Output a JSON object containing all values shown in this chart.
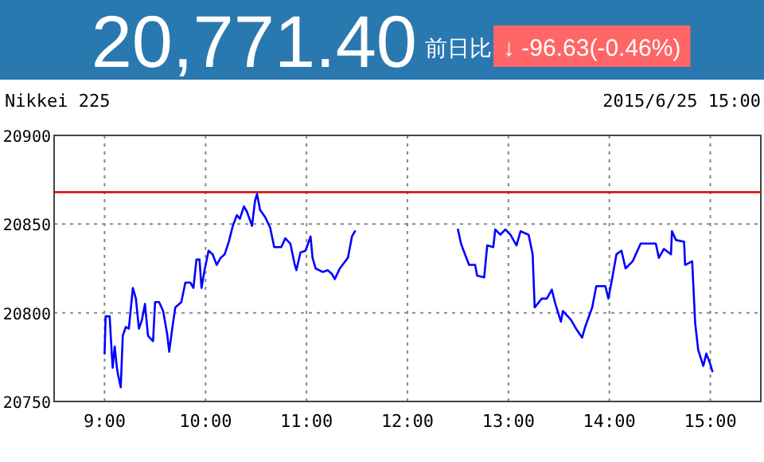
{
  "chart_data": {
    "type": "line",
    "title": "20,771.40",
    "subtitle": "Nikkei 225",
    "annotations": [
      "前日比",
      "↓ -96.63(-0.46%)",
      "2015/6/25 15:00"
    ],
    "xlim": [
      8.5,
      15.5
    ],
    "xticks": [
      {
        "value": 9,
        "label": "9:00"
      },
      {
        "value": 10,
        "label": "10:00"
      },
      {
        "value": 11,
        "label": "11:00"
      },
      {
        "value": 12,
        "label": "12:00"
      },
      {
        "value": 13,
        "label": "13:00"
      },
      {
        "value": 14,
        "label": "14:00"
      },
      {
        "value": 15,
        "label": "15:00"
      }
    ],
    "ylim": [
      20750,
      20900
    ],
    "yticks": [
      20750,
      20800,
      20850,
      20900
    ],
    "grid": true,
    "ref_lines": [
      {
        "axis": "y",
        "value": 20868.03,
        "color": "#e00000"
      }
    ],
    "series": [
      {
        "color": "#0000ff",
        "x": [
          9.0,
          9.01,
          9.05,
          9.07,
          9.08,
          9.1,
          9.12,
          9.13,
          9.16,
          9.18,
          9.21,
          9.24,
          9.28,
          9.31,
          9.34,
          9.37,
          9.4,
          9.43,
          9.48,
          9.5,
          9.54,
          9.58,
          9.62,
          9.64,
          9.67,
          9.7,
          9.76,
          9.8,
          9.85,
          9.88,
          9.91,
          9.94,
          9.96,
          9.99,
          10.03,
          10.07,
          10.11,
          10.15,
          10.19,
          10.23,
          10.27,
          10.31,
          10.34,
          10.38,
          10.41,
          10.46,
          10.49,
          10.51,
          10.54,
          10.59,
          10.64,
          10.68,
          10.75,
          10.79,
          10.84,
          10.88,
          10.9,
          10.94,
          10.99,
          11.04,
          11.06,
          11.09,
          11.16,
          11.21,
          11.25,
          11.28,
          11.33,
          11.37,
          11.41,
          11.45,
          11.48
        ],
        "values": [
          20777,
          20798,
          20798,
          20778,
          20769,
          20781,
          20770,
          20766,
          20758,
          20787,
          20792,
          20791,
          20814,
          20808,
          20791,
          20796,
          20805,
          20787,
          20784,
          20806,
          20806,
          20801,
          20788,
          20778,
          20791,
          20803,
          20806,
          20817,
          20817,
          20814,
          20830,
          20830,
          20814,
          20824,
          20835,
          20833,
          20827,
          20831,
          20833,
          20840,
          20849,
          20855,
          20853,
          20860,
          20857,
          20849,
          20863,
          20867,
          20858,
          20854,
          20848,
          20837,
          20837,
          20842,
          20839,
          20828,
          20824,
          20834,
          20835,
          20843,
          20831,
          20825,
          20823,
          20824,
          20822,
          20819,
          20825,
          20828,
          20831,
          20843,
          20846
        ]
      },
      {
        "color": "#0000ff",
        "x": [
          12.5,
          12.53,
          12.57,
          12.61,
          12.67,
          12.69,
          12.76,
          12.79,
          12.85,
          12.87,
          12.92,
          12.97,
          13.02,
          13.08,
          13.12,
          13.2,
          13.24,
          13.26,
          13.33,
          13.38,
          13.43,
          13.46,
          13.52,
          13.54,
          13.62,
          13.67,
          13.73,
          13.76,
          13.83,
          13.87,
          13.96,
          13.99,
          14.02,
          14.07,
          14.12,
          14.16,
          14.23,
          14.31,
          14.41,
          14.46,
          14.49,
          14.54,
          14.61,
          14.62,
          14.66,
          14.74,
          14.75,
          14.82,
          14.85,
          14.88,
          14.93,
          14.96,
          15.0,
          15.02
        ],
        "values": [
          20847,
          20839,
          20833,
          20827,
          20827,
          20821,
          20820,
          20838,
          20837,
          20847,
          20844,
          20847,
          20844,
          20838,
          20846,
          20844,
          20833,
          20803,
          20808,
          20808,
          20813,
          20806,
          20795,
          20801,
          20796,
          20791,
          20786,
          20792,
          20803,
          20815,
          20815,
          20808,
          20817,
          20833,
          20835,
          20825,
          20829,
          20839,
          20839,
          20839,
          20831,
          20836,
          20833,
          20846,
          20841,
          20840,
          20827,
          20829,
          20794,
          20779,
          20770,
          20777,
          20771,
          20767
        ]
      }
    ]
  }
}
